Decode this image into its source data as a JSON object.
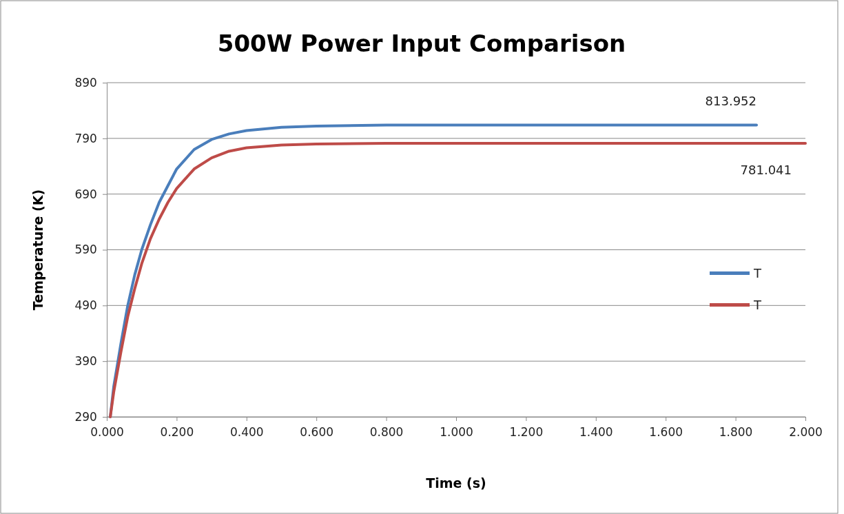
{
  "chart_data": {
    "type": "line",
    "title": "500W Power Input Comparison",
    "xlabel": "Time (s)",
    "ylabel": "Temperature (K)",
    "xlim": [
      0,
      2
    ],
    "xticks": [
      {
        "value": 0,
        "label": "0.000"
      },
      {
        "value": 0.2,
        "label": "0.200"
      },
      {
        "value": 0.4,
        "label": "0.400"
      },
      {
        "value": 0.6,
        "label": "0.600"
      },
      {
        "value": 0.8,
        "label": "0.800"
      },
      {
        "value": 1,
        "label": "1.000"
      },
      {
        "value": 1.2,
        "label": "1.200"
      },
      {
        "value": 1.4,
        "label": "1.400"
      },
      {
        "value": 1.6,
        "label": "1.600"
      },
      {
        "value": 1.8,
        "label": "1.800"
      },
      {
        "value": 2,
        "label": "2.000"
      }
    ],
    "ylim": [
      290,
      890
    ],
    "yticks": [
      290,
      390,
      490,
      590,
      690,
      790,
      890
    ],
    "grid": "y",
    "legend": "right",
    "marker": "none",
    "line_style": "solid",
    "series": [
      {
        "name": "T",
        "color": "#4a7ebb",
        "x": [
          0.01,
          0.02,
          0.04,
          0.06,
          0.08,
          0.1,
          0.125,
          0.15,
          0.175,
          0.2,
          0.25,
          0.3,
          0.35,
          0.4,
          0.5,
          0.6,
          0.8,
          1.0,
          1.4,
          1.86
        ],
        "values": [
          290,
          345,
          420,
          490,
          545,
          590,
          635,
          675,
          705,
          735,
          770,
          788,
          798,
          804,
          810,
          812,
          814,
          814,
          814,
          813.952
        ]
      },
      {
        "name": "T",
        "color": "#be4b48",
        "x": [
          0.01,
          0.02,
          0.04,
          0.06,
          0.08,
          0.1,
          0.125,
          0.15,
          0.175,
          0.2,
          0.25,
          0.3,
          0.35,
          0.4,
          0.5,
          0.6,
          0.8,
          1.2,
          2.0
        ],
        "values": [
          290,
          335,
          405,
          470,
          520,
          565,
          610,
          645,
          675,
          700,
          735,
          755,
          767,
          773,
          778,
          780,
          781,
          781,
          781.041
        ]
      }
    ],
    "annotations": [
      {
        "text": "813.952",
        "x": 1.86,
        "y": 813.952
      },
      {
        "text": "781.041",
        "x": 2.0,
        "y": 781.041
      }
    ]
  }
}
